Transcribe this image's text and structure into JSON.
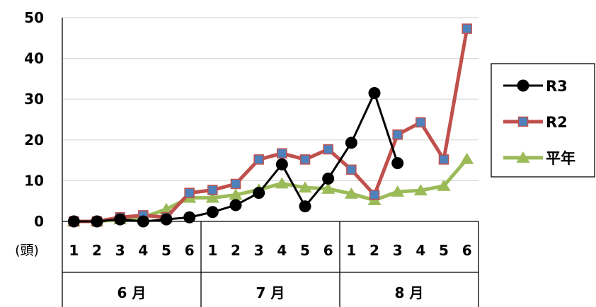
{
  "chart_data": {
    "type": "line",
    "title": "",
    "xlabel": "",
    "ylabel": "",
    "unit_label": "(頭)",
    "ylim": [
      0,
      50
    ],
    "y_ticks": [
      "0",
      "10",
      "20",
      "30",
      "40",
      "50"
    ],
    "grid": "horizontal",
    "legend_position": "right",
    "categories": [
      "1",
      "2",
      "3",
      "4",
      "5",
      "6",
      "1",
      "2",
      "3",
      "4",
      "5",
      "6",
      "1",
      "2",
      "3",
      "4",
      "5",
      "6"
    ],
    "groups": [
      {
        "label": "6 月",
        "count": 6
      },
      {
        "label": "7 月",
        "count": 6
      },
      {
        "label": "8 月",
        "count": 6
      }
    ],
    "series": [
      {
        "name": "R3",
        "color": "#000000",
        "marker": "circle",
        "values": [
          0,
          0,
          0.5,
          0,
          0.5,
          1,
          2.3,
          4,
          7,
          14,
          3.7,
          10.5,
          19.3,
          31.5,
          14.3,
          null,
          null,
          null
        ]
      },
      {
        "name": "R2",
        "color": "#C0504D",
        "marker": "square",
        "marker_fill": "#4F81BD",
        "values": [
          0,
          0,
          1,
          1.5,
          1,
          7,
          7.7,
          9.2,
          15.2,
          16.7,
          15.2,
          17.7,
          12.7,
          6.5,
          21.3,
          24.3,
          15.2,
          47.3
        ]
      },
      {
        "name": "平年",
        "color": "#9BBB59",
        "marker": "triangle",
        "values": [
          0,
          0,
          0.5,
          1,
          3,
          5.8,
          5.8,
          6.5,
          7.8,
          9.3,
          8.3,
          8,
          6.8,
          5.2,
          7.3,
          7.6,
          8.7,
          15.3
        ]
      }
    ]
  }
}
